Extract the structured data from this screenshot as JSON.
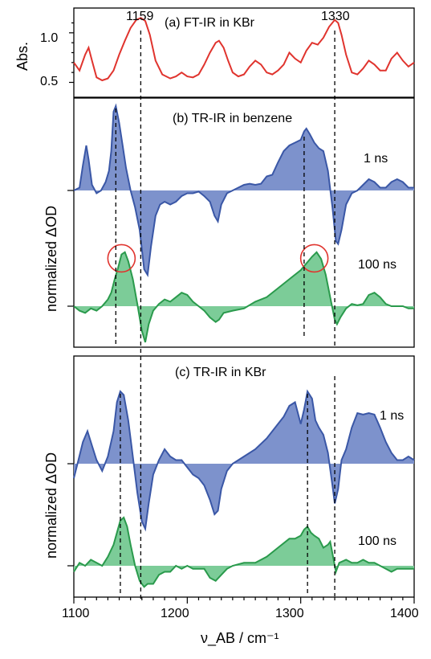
{
  "colors": {
    "ftir": "#e0342e",
    "blue_line": "#3a57a6",
    "blue_fill": "#7d92cc",
    "green_line": "#2a9a4c",
    "green_fill": "#7ccc98",
    "circle": "#e0342e"
  },
  "chart_data": [
    {
      "type": "line",
      "panel": "a",
      "title": "(a) FT-IR in KBr",
      "ylabel": "Abs.",
      "yticks": [
        "0.5",
        "1.0"
      ],
      "ylim": [
        0.35,
        1.25
      ],
      "xlim": [
        1100,
        1400
      ],
      "peak_labels": [
        "1159",
        "1330"
      ],
      "series": [
        {
          "color": "ftir",
          "x": [
            1100,
            1105,
            1110,
            1113,
            1116,
            1120,
            1125,
            1130,
            1135,
            1140,
            1145,
            1150,
            1155,
            1159,
            1163,
            1167,
            1172,
            1178,
            1185,
            1190,
            1195,
            1200,
            1205,
            1210,
            1215,
            1220,
            1225,
            1228,
            1232,
            1236,
            1240,
            1245,
            1250,
            1255,
            1260,
            1265,
            1270,
            1275,
            1280,
            1285,
            1290,
            1295,
            1300,
            1305,
            1310,
            1315,
            1320,
            1325,
            1330,
            1333,
            1336,
            1340,
            1345,
            1350,
            1355,
            1360,
            1365,
            1370,
            1375,
            1380,
            1385,
            1390,
            1395,
            1400
          ],
          "values": [
            0.7,
            0.62,
            0.78,
            0.85,
            0.72,
            0.55,
            0.52,
            0.54,
            0.62,
            0.78,
            0.92,
            1.05,
            1.13,
            1.15,
            1.12,
            0.98,
            0.72,
            0.58,
            0.54,
            0.56,
            0.6,
            0.56,
            0.55,
            0.58,
            0.68,
            0.8,
            0.9,
            0.92,
            0.85,
            0.72,
            0.6,
            0.56,
            0.58,
            0.66,
            0.72,
            0.68,
            0.6,
            0.58,
            0.62,
            0.68,
            0.8,
            0.74,
            0.7,
            0.82,
            0.9,
            0.88,
            0.95,
            1.06,
            1.13,
            1.1,
            0.98,
            0.78,
            0.6,
            0.58,
            0.64,
            0.72,
            0.68,
            0.62,
            0.62,
            0.74,
            0.8,
            0.72,
            0.66,
            0.7
          ]
        }
      ]
    },
    {
      "type": "area",
      "panel": "b",
      "title": "(b) TR-IR in benzene",
      "ylabel": "normalized ΔOD",
      "xlim": [
        1100,
        1400
      ],
      "series": [
        {
          "name": "1 ns",
          "color": "blue",
          "x": [
            1100,
            1105,
            1108,
            1111,
            1113,
            1116,
            1120,
            1124,
            1128,
            1131,
            1133,
            1135,
            1137,
            1140,
            1143,
            1146,
            1150,
            1154,
            1158,
            1162,
            1165,
            1168,
            1172,
            1176,
            1180,
            1185,
            1190,
            1195,
            1200,
            1205,
            1210,
            1215,
            1220,
            1224,
            1227,
            1230,
            1235,
            1240,
            1245,
            1250,
            1255,
            1260,
            1265,
            1270,
            1275,
            1280,
            1285,
            1290,
            1295,
            1300,
            1303,
            1305,
            1308,
            1312,
            1316,
            1320,
            1324,
            1328,
            1331,
            1333,
            1336,
            1340,
            1345,
            1350,
            1355,
            1360,
            1365,
            1370,
            1375,
            1380,
            1385,
            1390,
            1395,
            1400
          ],
          "values": [
            0.0,
            0.05,
            0.45,
            0.8,
            0.55,
            0.1,
            -0.05,
            0.0,
            0.15,
            0.35,
            0.7,
            1.4,
            1.5,
            1.2,
            0.8,
            0.4,
            0.0,
            -0.3,
            -0.7,
            -1.4,
            -1.5,
            -1.0,
            -0.45,
            -0.25,
            -0.2,
            -0.25,
            -0.2,
            -0.1,
            -0.05,
            -0.05,
            -0.02,
            -0.1,
            -0.2,
            -0.45,
            -0.55,
            -0.25,
            -0.05,
            0.0,
            0.05,
            0.1,
            0.12,
            0.1,
            0.12,
            0.25,
            0.28,
            0.5,
            0.7,
            0.8,
            0.85,
            0.9,
            1.05,
            1.1,
            1.0,
            0.85,
            0.75,
            0.7,
            0.35,
            -0.3,
            -0.9,
            -0.95,
            -0.7,
            -0.25,
            -0.05,
            0.0,
            0.1,
            0.2,
            0.15,
            0.05,
            0.05,
            0.15,
            0.2,
            0.15,
            0.05,
            0.05
          ]
        },
        {
          "name": "100 ns",
          "color": "green",
          "x": [
            1100,
            1105,
            1110,
            1115,
            1120,
            1125,
            1130,
            1133,
            1136,
            1139,
            1142,
            1145,
            1148,
            1152,
            1156,
            1160,
            1163,
            1166,
            1170,
            1175,
            1180,
            1185,
            1190,
            1195,
            1200,
            1205,
            1210,
            1215,
            1220,
            1225,
            1228,
            1232,
            1240,
            1250,
            1260,
            1270,
            1280,
            1290,
            1300,
            1305,
            1310,
            1314,
            1318,
            1322,
            1326,
            1330,
            1332,
            1335,
            1340,
            1345,
            1350,
            1355,
            1360,
            1365,
            1370,
            1375,
            1380,
            1385,
            1390,
            1395,
            1400
          ],
          "values": [
            0.0,
            -0.1,
            -0.15,
            -0.05,
            -0.1,
            0.0,
            0.15,
            0.3,
            0.6,
            0.85,
            1.15,
            1.2,
            1.0,
            0.6,
            0.05,
            -0.55,
            -0.8,
            -0.4,
            -0.1,
            0.05,
            0.15,
            0.1,
            0.2,
            0.3,
            0.25,
            0.1,
            0.0,
            -0.1,
            -0.25,
            -0.35,
            -0.3,
            -0.15,
            -0.1,
            -0.05,
            0.1,
            0.2,
            0.4,
            0.6,
            0.8,
            0.95,
            1.1,
            1.2,
            1.05,
            0.7,
            0.2,
            -0.3,
            -0.4,
            -0.25,
            -0.05,
            0.05,
            0.02,
            0.05,
            0.25,
            0.3,
            0.2,
            0.05,
            0.0,
            0.0,
            0.0,
            -0.05,
            -0.05
          ]
        }
      ]
    },
    {
      "type": "area",
      "panel": "c",
      "title": "(c) TR-IR in KBr",
      "ylabel": "normalized ΔOD",
      "xlim": [
        1100,
        1400
      ],
      "xlabel": "ν_AB / cm⁻¹",
      "xticks": [
        "1100",
        "1200",
        "1300",
        "1400"
      ],
      "series": [
        {
          "name": "1 ns",
          "color": "blue",
          "x": [
            1100,
            1104,
            1108,
            1112,
            1116,
            1120,
            1125,
            1130,
            1135,
            1138,
            1141,
            1144,
            1148,
            1152,
            1156,
            1160,
            1163,
            1166,
            1170,
            1175,
            1180,
            1185,
            1190,
            1195,
            1200,
            1205,
            1210,
            1215,
            1220,
            1224,
            1227,
            1230,
            1235,
            1240,
            1250,
            1260,
            1270,
            1280,
            1285,
            1290,
            1295,
            1300,
            1303,
            1306,
            1310,
            1313,
            1316,
            1320,
            1324,
            1328,
            1330,
            1333,
            1336,
            1340,
            1345,
            1350,
            1355,
            1360,
            1365,
            1370,
            1375,
            1380,
            1385,
            1390,
            1395,
            1400
          ],
          "values": [
            -0.2,
            0.05,
            0.3,
            0.45,
            0.25,
            0.05,
            -0.1,
            0.1,
            0.45,
            0.85,
            1.0,
            0.95,
            0.6,
            0.1,
            -0.4,
            -0.8,
            -0.9,
            -0.55,
            -0.15,
            0.05,
            0.2,
            0.1,
            0.05,
            0.05,
            -0.05,
            -0.15,
            -0.2,
            -0.3,
            -0.5,
            -0.7,
            -0.65,
            -0.35,
            -0.1,
            0.0,
            0.1,
            0.2,
            0.35,
            0.55,
            0.65,
            0.8,
            0.85,
            0.55,
            0.75,
            1.0,
            0.9,
            0.6,
            0.5,
            0.4,
            0.15,
            -0.3,
            -0.55,
            -0.35,
            0.05,
            0.2,
            0.5,
            0.7,
            0.68,
            0.7,
            0.68,
            0.5,
            0.3,
            0.15,
            0.05,
            0.05,
            0.1,
            0.05
          ]
        },
        {
          "name": "100 ns",
          "color": "green",
          "x": [
            1100,
            1105,
            1110,
            1115,
            1120,
            1125,
            1130,
            1135,
            1138,
            1141,
            1144,
            1147,
            1150,
            1154,
            1158,
            1162,
            1165,
            1170,
            1175,
            1180,
            1185,
            1190,
            1195,
            1200,
            1205,
            1210,
            1215,
            1220,
            1225,
            1230,
            1235,
            1240,
            1250,
            1260,
            1270,
            1280,
            1290,
            1295,
            1300,
            1303,
            1306,
            1309,
            1312,
            1316,
            1320,
            1324,
            1326,
            1329,
            1331,
            1334,
            1340,
            1345,
            1350,
            1355,
            1360,
            1365,
            1370,
            1375,
            1380,
            1385,
            1390,
            1395,
            1400
          ],
          "values": [
            -0.1,
            0.05,
            0.0,
            0.1,
            0.05,
            0.0,
            0.15,
            0.35,
            0.55,
            0.75,
            0.8,
            0.65,
            0.35,
            0.0,
            -0.25,
            -0.35,
            -0.3,
            -0.3,
            -0.15,
            -0.1,
            -0.1,
            0.0,
            -0.05,
            0.0,
            -0.05,
            -0.05,
            -0.05,
            -0.2,
            -0.25,
            -0.15,
            -0.05,
            0.0,
            0.05,
            0.05,
            0.15,
            0.3,
            0.45,
            0.45,
            0.5,
            0.6,
            0.65,
            0.55,
            0.5,
            0.45,
            0.3,
            0.35,
            0.4,
            0.1,
            -0.1,
            0.05,
            0.1,
            0.05,
            0.05,
            0.1,
            0.05,
            0.05,
            0.0,
            -0.05,
            -0.1,
            -0.05,
            -0.05,
            -0.05,
            -0.05
          ]
        }
      ]
    }
  ],
  "shared": {
    "dashed_lines_x": [
      1137,
      1159,
      1303,
      1330
    ],
    "dashed_lines_c_x": [
      1141,
      1160,
      1306,
      1330
    ],
    "circles": [
      {
        "panel": "b",
        "x": 1142,
        "y": 1.1
      },
      {
        "panel": "b",
        "x": 1312,
        "y": 1.1
      }
    ]
  }
}
